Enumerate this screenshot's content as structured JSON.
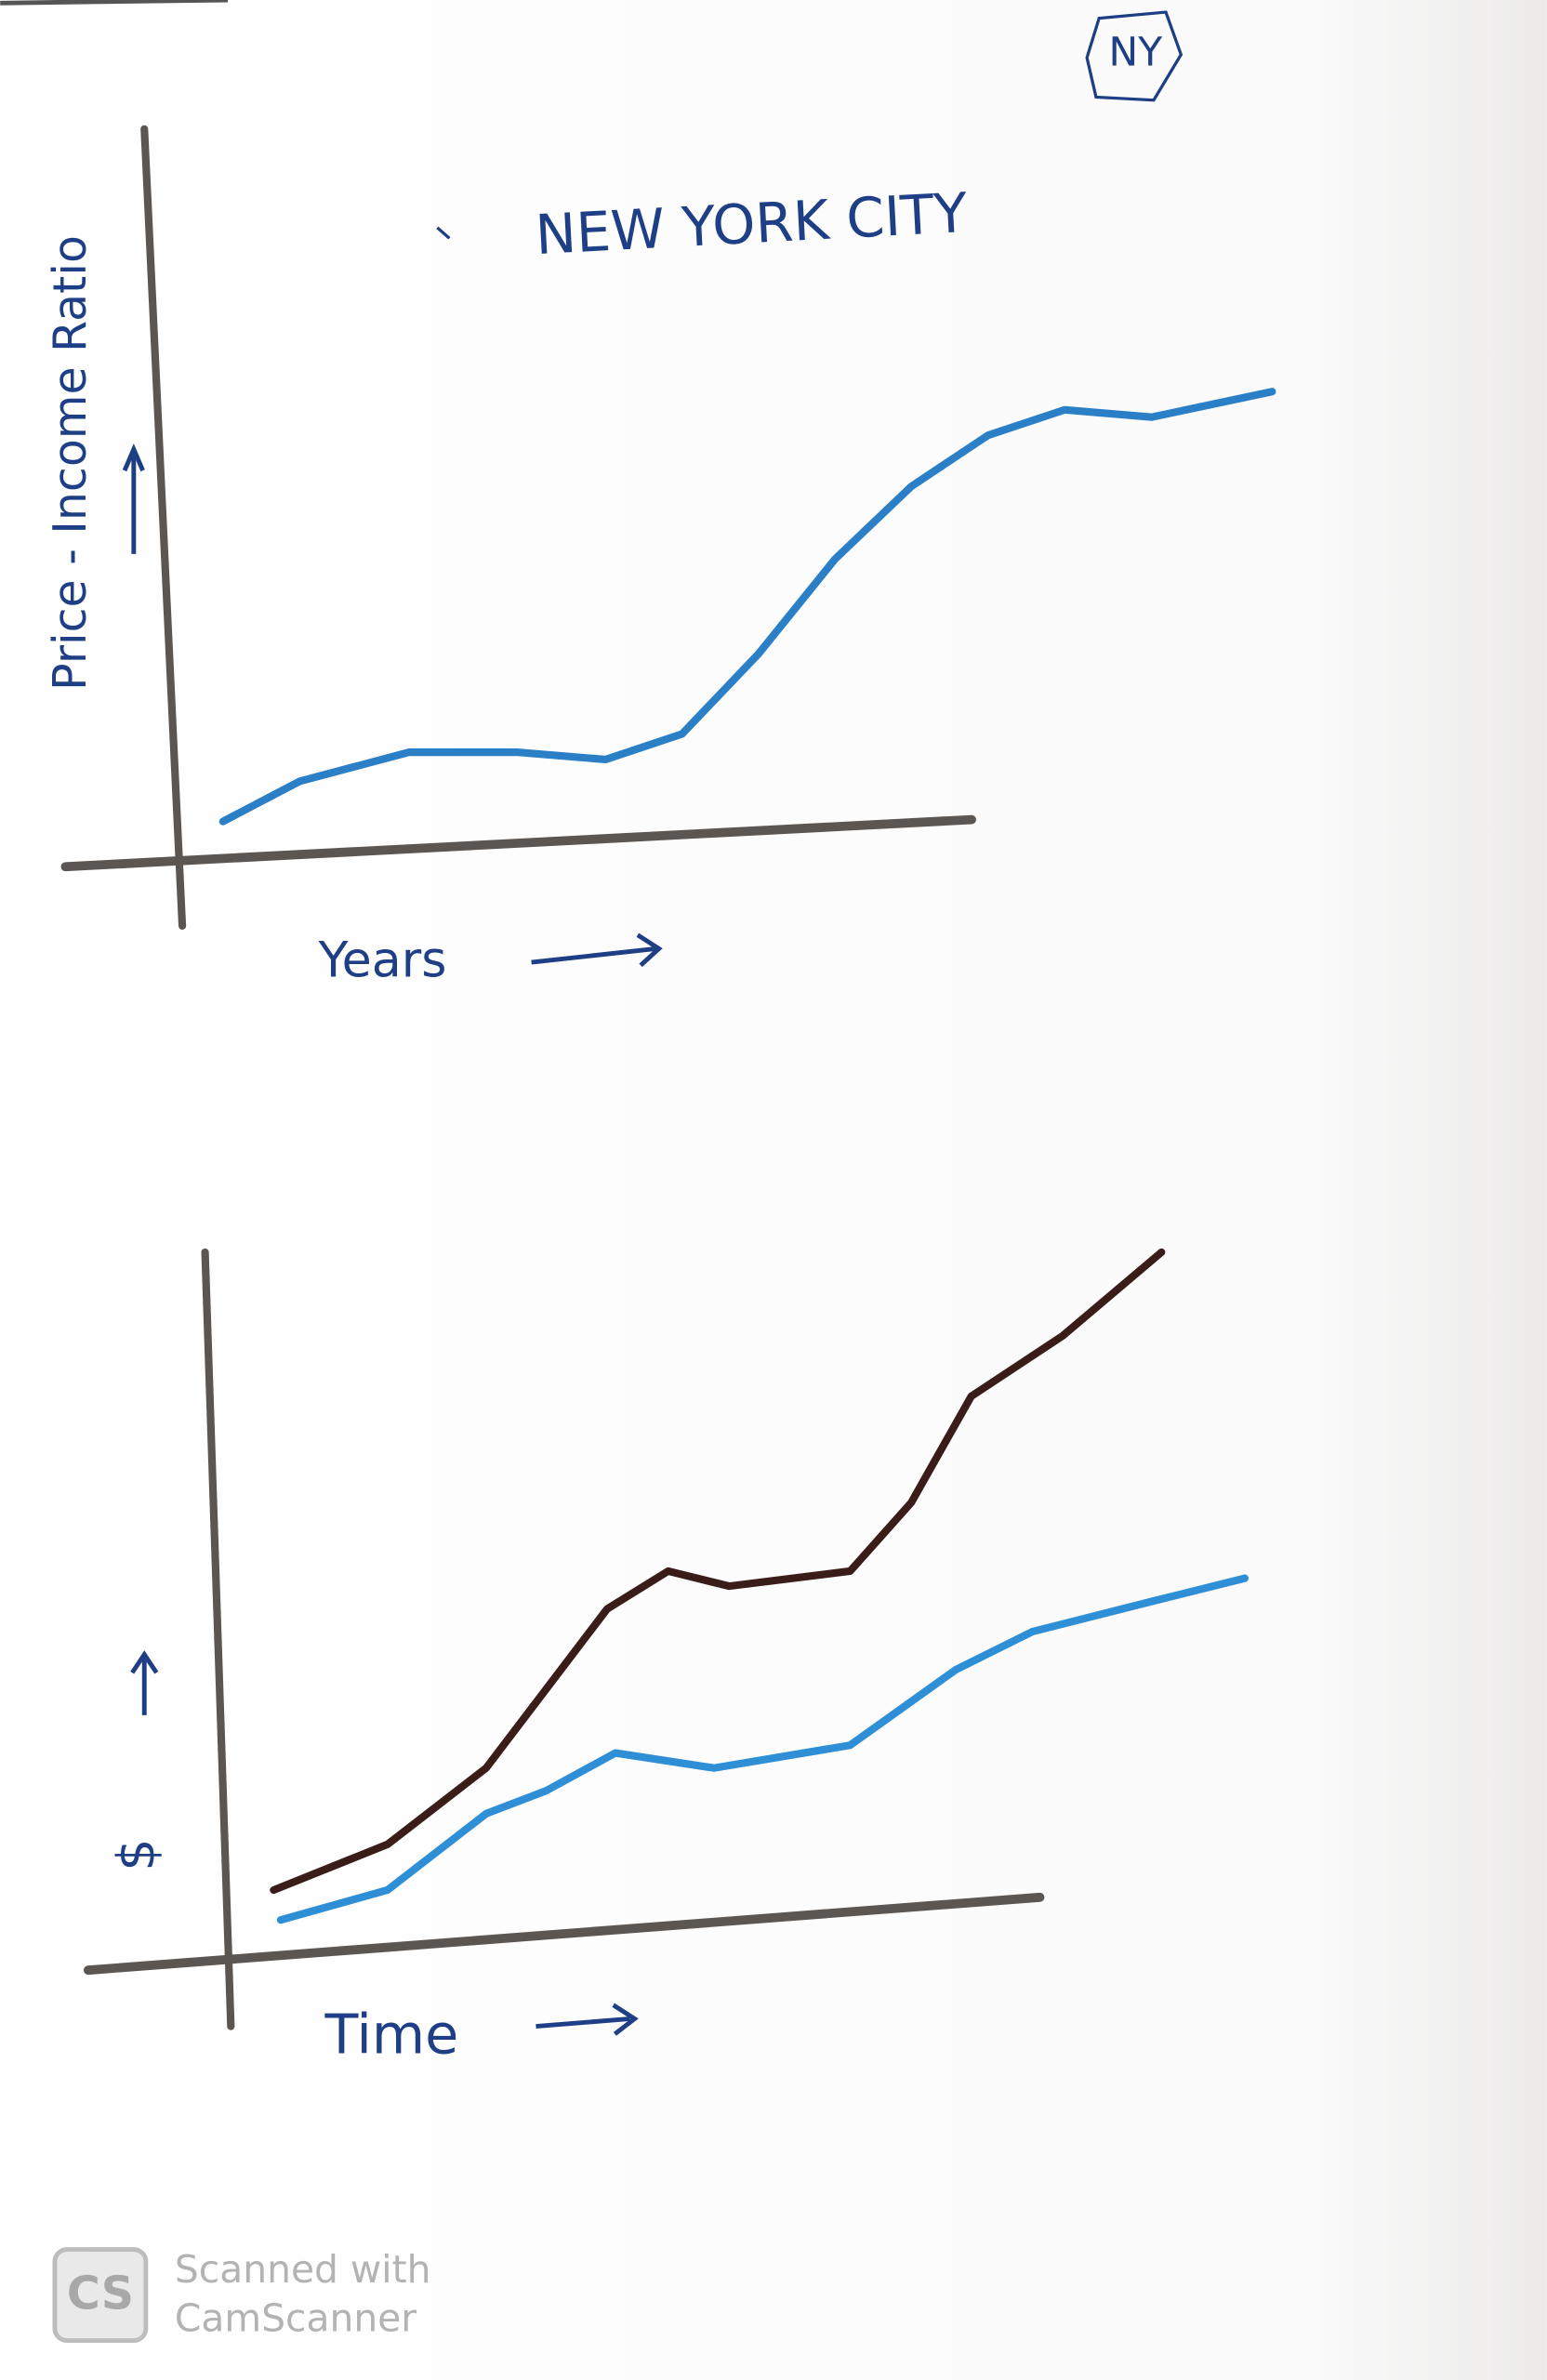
{
  "chart_data": [
    {
      "type": "line",
      "title": "NEW YORK CITY",
      "annotations": [
        "NY"
      ],
      "x_label": "Years",
      "y_label": "Price - Income Ratio",
      "xlim": [
        0,
        10
      ],
      "ylim": [
        0,
        10
      ],
      "series": [
        {
          "color": "#2b7fc6",
          "x": [
            0.4,
            1.1,
            2.1,
            3.1,
            3.9,
            4.6,
            5.3,
            6.0,
            6.7,
            7.4,
            8.1,
            8.9,
            10
          ],
          "values": [
            0.6,
            1.15,
            1.55,
            1.55,
            1.45,
            1.8,
            2.9,
            4.2,
            5.2,
            5.9,
            6.25,
            6.15,
            6.5
          ]
        }
      ]
    },
    {
      "type": "line",
      "x_label": "Time",
      "y_label": "$",
      "xlim": [
        0,
        10
      ],
      "ylim": [
        0,
        10
      ],
      "series": [
        {
          "color": "#3a1d18",
          "x": [
            0.45,
            1.57,
            2.54,
            3.73,
            4.33,
            4.93,
            6.12,
            6.72,
            7.31,
            8.21,
            9.18
          ],
          "values": [
            1.06,
            1.7,
            2.77,
            5.0,
            5.53,
            5.32,
            5.53,
            6.49,
            7.98,
            8.83,
            10.0
          ]
        },
        {
          "color": "#2e8fd6",
          "x": [
            0.52,
            1.57,
            2.54,
            3.13,
            3.81,
            4.78,
            6.12,
            7.16,
            7.91,
            9.1,
            10
          ],
          "values": [
            0.64,
            1.06,
            2.13,
            2.45,
            2.98,
            2.77,
            3.09,
            4.15,
            4.68,
            5.11,
            5.43
          ]
        }
      ]
    }
  ],
  "watermark": {
    "logo": "CS",
    "lines": [
      "Scanned with",
      "CamScanner"
    ]
  }
}
